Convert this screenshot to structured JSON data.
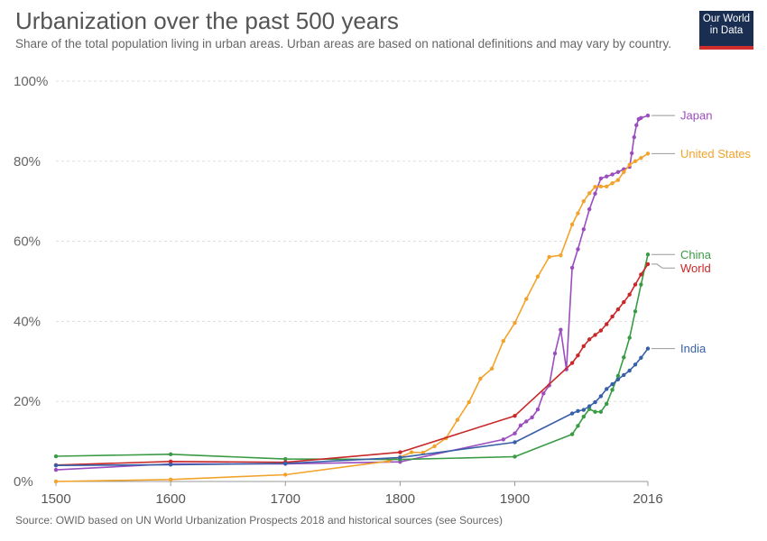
{
  "header": {
    "title": "Urbanization over the past 500 years",
    "subtitle": "Share of the total population living in urban areas. Urban areas are based on national definitions and may vary by country."
  },
  "logo": {
    "line1": "Our World",
    "line2": "in Data",
    "bg_color": "#1a2e52",
    "accent_color": "#d22d2d"
  },
  "footer": {
    "source": "Source: OWID based on UN World Urbanization Prospects 2018 and historical sources (see Sources)"
  },
  "chart_data": {
    "type": "line",
    "title": "Urbanization over the past 500 years",
    "xlabel": "",
    "ylabel": "",
    "xlim": [
      1500,
      2016
    ],
    "ylim": [
      0,
      100
    ],
    "x_ticks": [
      1500,
      1600,
      1700,
      1800,
      1900,
      2016
    ],
    "x_tick_labels": [
      "1500",
      "1600",
      "1700",
      "1800",
      "1900",
      "2016"
    ],
    "y_ticks": [
      0,
      20,
      40,
      60,
      80,
      100
    ],
    "y_tick_labels": [
      "0%",
      "20%",
      "40%",
      "60%",
      "80%",
      "100%"
    ],
    "grid": "horizontal dashed",
    "legend": "inline labels at right end of lines",
    "series": [
      {
        "name": "Japan",
        "color": "#9b4dbf",
        "points": [
          [
            1500,
            2.9
          ],
          [
            1600,
            4.4
          ],
          [
            1700,
            4.4
          ],
          [
            1800,
            4.9
          ],
          [
            1890,
            10.5
          ],
          [
            1900,
            12.0
          ],
          [
            1905,
            14
          ],
          [
            1910,
            15
          ],
          [
            1915,
            16
          ],
          [
            1920,
            18
          ],
          [
            1925,
            22
          ],
          [
            1930,
            24
          ],
          [
            1935,
            32
          ],
          [
            1940,
            37.9
          ],
          [
            1945,
            28
          ],
          [
            1950,
            53.4
          ],
          [
            1955,
            58
          ],
          [
            1960,
            63
          ],
          [
            1965,
            68
          ],
          [
            1970,
            71.9
          ],
          [
            1975,
            75.7
          ],
          [
            1980,
            76.2
          ],
          [
            1985,
            76.7
          ],
          [
            1990,
            77.3
          ],
          [
            1995,
            78
          ],
          [
            2000,
            78.6
          ],
          [
            2002,
            82
          ],
          [
            2004,
            86
          ],
          [
            2006,
            89
          ],
          [
            2008,
            90.5
          ],
          [
            2010,
            90.8
          ],
          [
            2016,
            91.4
          ]
        ]
      },
      {
        "name": "United States",
        "color": "#f2a32c",
        "points": [
          [
            1500,
            0
          ],
          [
            1600,
            0.5
          ],
          [
            1700,
            1.7
          ],
          [
            1790,
            5.1
          ],
          [
            1800,
            6.1
          ],
          [
            1810,
            7.3
          ],
          [
            1820,
            7.2
          ],
          [
            1830,
            8.8
          ],
          [
            1840,
            10.8
          ],
          [
            1850,
            15.4
          ],
          [
            1860,
            19.8
          ],
          [
            1870,
            25.7
          ],
          [
            1880,
            28.2
          ],
          [
            1890,
            35.1
          ],
          [
            1900,
            39.6
          ],
          [
            1910,
            45.6
          ],
          [
            1920,
            51.2
          ],
          [
            1930,
            56.1
          ],
          [
            1940,
            56.5
          ],
          [
            1950,
            64.2
          ],
          [
            1955,
            67
          ],
          [
            1960,
            70
          ],
          [
            1965,
            72
          ],
          [
            1970,
            73.6
          ],
          [
            1975,
            73.7
          ],
          [
            1980,
            73.7
          ],
          [
            1985,
            74.5
          ],
          [
            1990,
            75.3
          ],
          [
            1995,
            77.3
          ],
          [
            2000,
            79.1
          ],
          [
            2005,
            80
          ],
          [
            2010,
            80.8
          ],
          [
            2016,
            81.9
          ]
        ]
      },
      {
        "name": "China",
        "color": "#3a9b45",
        "points": [
          [
            1500,
            6.3
          ],
          [
            1600,
            6.8
          ],
          [
            1700,
            5.6
          ],
          [
            1800,
            5.5
          ],
          [
            1900,
            6.2
          ],
          [
            1950,
            11.8
          ],
          [
            1955,
            13.9
          ],
          [
            1960,
            16.2
          ],
          [
            1965,
            18.1
          ],
          [
            1970,
            17.4
          ],
          [
            1975,
            17.4
          ],
          [
            1980,
            19.4
          ],
          [
            1985,
            22.9
          ],
          [
            1990,
            26.4
          ],
          [
            1995,
            31
          ],
          [
            2000,
            35.9
          ],
          [
            2005,
            42.5
          ],
          [
            2010,
            49.2
          ],
          [
            2016,
            56.7
          ]
        ]
      },
      {
        "name": "World",
        "color": "#c82828",
        "points": [
          [
            1500,
            4.1
          ],
          [
            1600,
            5
          ],
          [
            1700,
            4.8
          ],
          [
            1800,
            7.3
          ],
          [
            1900,
            16.4
          ],
          [
            1950,
            29.6
          ],
          [
            1955,
            31.5
          ],
          [
            1960,
            33.8
          ],
          [
            1965,
            35.5
          ],
          [
            1970,
            36.6
          ],
          [
            1975,
            37.7
          ],
          [
            1980,
            39.3
          ],
          [
            1985,
            41.2
          ],
          [
            1990,
            43
          ],
          [
            1995,
            44.8
          ],
          [
            2000,
            46.7
          ],
          [
            2005,
            49.2
          ],
          [
            2010,
            51.7
          ],
          [
            2016,
            54.3
          ]
        ]
      },
      {
        "name": "India",
        "color": "#3860a8",
        "points": [
          [
            1500,
            4
          ],
          [
            1600,
            4.2
          ],
          [
            1700,
            4.5
          ],
          [
            1800,
            6
          ],
          [
            1900,
            9.8
          ],
          [
            1950,
            17
          ],
          [
            1955,
            17.6
          ],
          [
            1960,
            17.9
          ],
          [
            1965,
            18.8
          ],
          [
            1970,
            19.8
          ],
          [
            1975,
            21.3
          ],
          [
            1980,
            23.1
          ],
          [
            1985,
            24.3
          ],
          [
            1990,
            25.5
          ],
          [
            1995,
            26.6
          ],
          [
            2000,
            27.7
          ],
          [
            2005,
            29.2
          ],
          [
            2010,
            30.9
          ],
          [
            2016,
            33.2
          ]
        ]
      }
    ]
  }
}
